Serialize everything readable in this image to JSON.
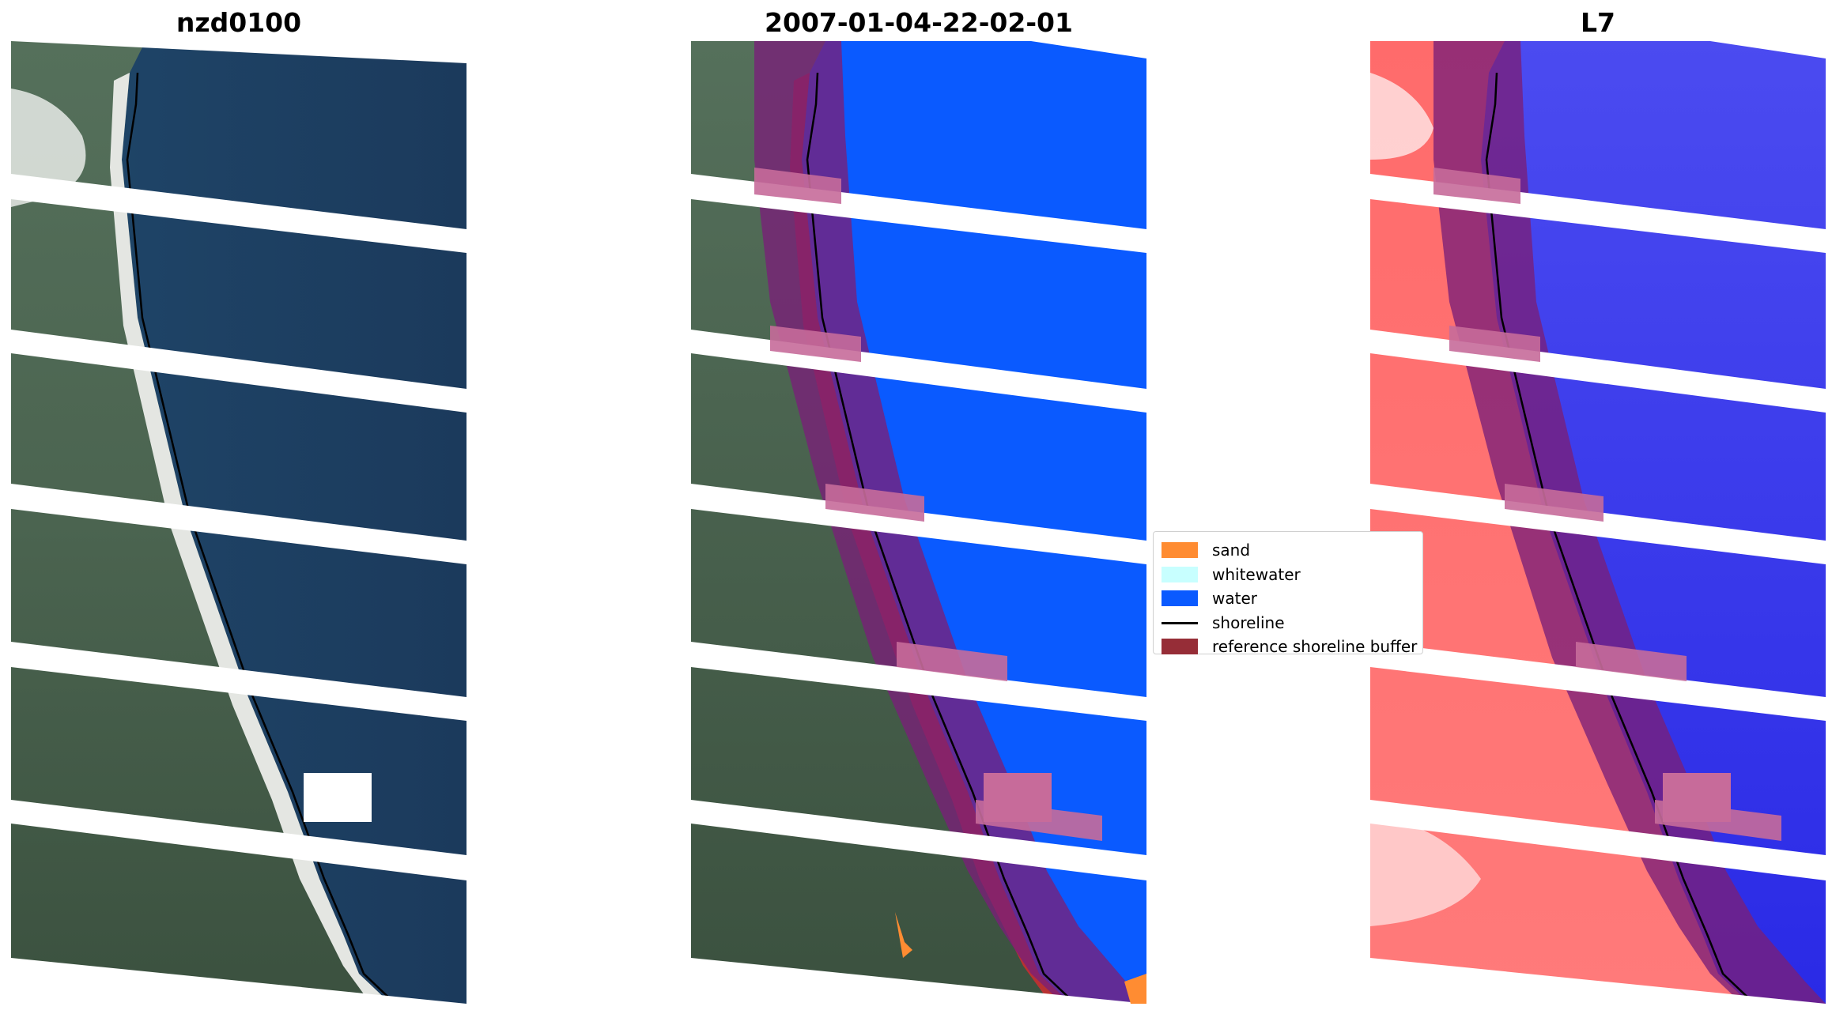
{
  "panels": [
    {
      "title": "nzd0100",
      "kind": "rgb"
    },
    {
      "title": "2007-01-04-22-02-01",
      "kind": "classification"
    },
    {
      "title": "L7",
      "kind": "index"
    }
  ],
  "legend": {
    "items": [
      {
        "label": "sand",
        "color": "#ff8c32",
        "kind": "patch"
      },
      {
        "label": "whitewater",
        "color": "#c8ffff",
        "kind": "patch"
      },
      {
        "label": "water",
        "color": "#0a5aff",
        "kind": "patch"
      },
      {
        "label": "shoreline",
        "color": "#000000",
        "kind": "line"
      },
      {
        "label": "reference shoreline buffer",
        "color": "#962d37",
        "kind": "patch"
      }
    ]
  },
  "colors": {
    "ocean": "#1d3a5c",
    "ocean_near_shore": "#2a6784",
    "land": "#4f6553",
    "land_dark": "#36483c",
    "beach": "#e6e6e0",
    "water_class": "#0a5aff",
    "sand_class": "#ff8c32",
    "buffer": "#962d37",
    "index_land": "#ff5a5a",
    "index_water": "#3c3ce6"
  }
}
